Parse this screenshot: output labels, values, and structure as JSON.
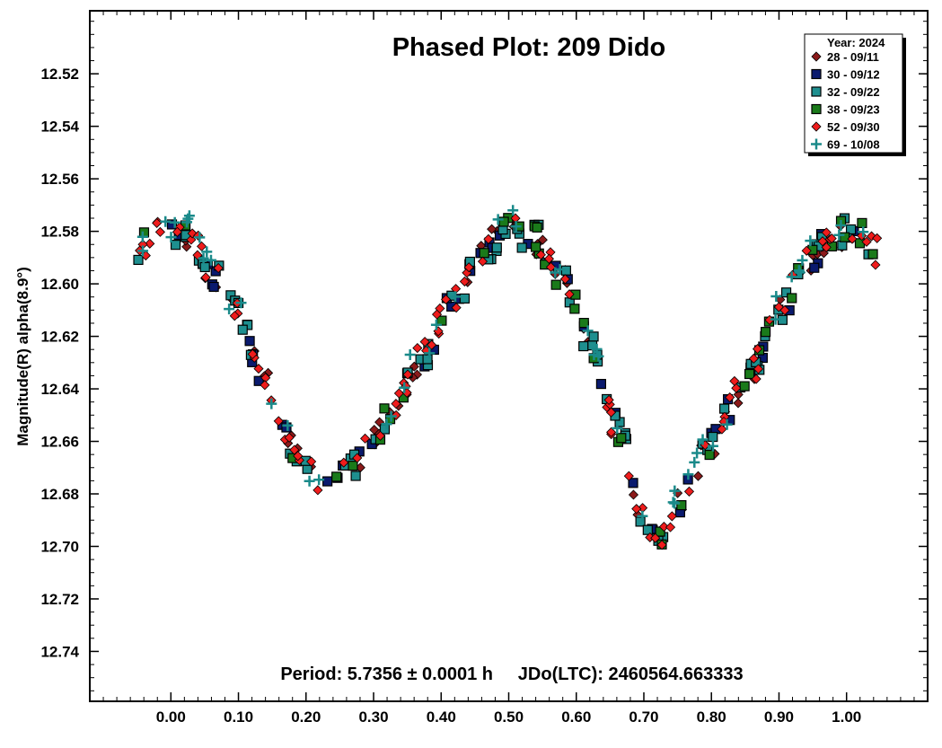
{
  "chart_data": {
    "type": "scatter",
    "title": "Phased Plot: 209 Dido",
    "ylabel": "Magnitude(R) alpha(8.9°)",
    "xlabel": "",
    "xlim": [
      -0.12,
      1.12
    ],
    "ylim": [
      12.759,
      12.496
    ],
    "y_inverted": true,
    "x_ticks": [
      0.0,
      0.1,
      0.2,
      0.3,
      0.4,
      0.5,
      0.6,
      0.7,
      0.8,
      0.9,
      1.0
    ],
    "x_tick_labels": [
      "0.00",
      "0.10",
      "0.20",
      "0.30",
      "0.40",
      "0.50",
      "0.60",
      "0.70",
      "0.80",
      "0.90",
      "1.00"
    ],
    "y_ticks": [
      12.52,
      12.54,
      12.56,
      12.58,
      12.6,
      12.62,
      12.64,
      12.66,
      12.68,
      12.7,
      12.72,
      12.74
    ],
    "y_tick_labels": [
      "12.52",
      "12.54",
      "12.56",
      "12.58",
      "12.60",
      "12.62",
      "12.64",
      "12.66",
      "12.68",
      "12.70",
      "12.72",
      "12.74"
    ],
    "footer": "Period: 5.7356 ± 0.0001 h     JDo(LTC): 2460564.663333",
    "grid": false,
    "legend": {
      "placement": "top-right",
      "title": "Year: 2024",
      "entries": [
        {
          "name": "28 - 09/11",
          "marker": "diamond",
          "color": "#8b1a1a"
        },
        {
          "name": "30 - 09/12",
          "marker": "square",
          "color": "#0a1a6e"
        },
        {
          "name": "32 - 09/22",
          "marker": "square",
          "color": "#1e8f8f"
        },
        {
          "name": "38 - 09/23",
          "marker": "square",
          "color": "#1a7a1a"
        },
        {
          "name": "52 - 09/30",
          "marker": "diamond",
          "color": "#ee1c1c"
        },
        {
          "name": "69 - 10/08",
          "marker": "plus",
          "color": "#1a8a8a"
        }
      ]
    },
    "curve_model": {
      "x": [
        -0.05,
        0.0,
        0.03,
        0.06,
        0.1,
        0.14,
        0.17,
        0.2,
        0.23,
        0.27,
        0.32,
        0.37,
        0.42,
        0.46,
        0.5,
        0.54,
        0.58,
        0.62,
        0.66,
        0.7,
        0.72,
        0.75,
        0.8,
        0.85,
        0.9,
        0.94,
        0.98,
        1.02,
        1.05
      ],
      "y": [
        12.585,
        12.58,
        12.582,
        12.595,
        12.612,
        12.638,
        12.66,
        12.672,
        12.673,
        12.668,
        12.652,
        12.628,
        12.605,
        12.588,
        12.578,
        12.583,
        12.598,
        12.622,
        12.655,
        12.688,
        12.695,
        12.685,
        12.66,
        12.638,
        12.612,
        12.592,
        12.58,
        12.582,
        12.588
      ]
    }
  }
}
